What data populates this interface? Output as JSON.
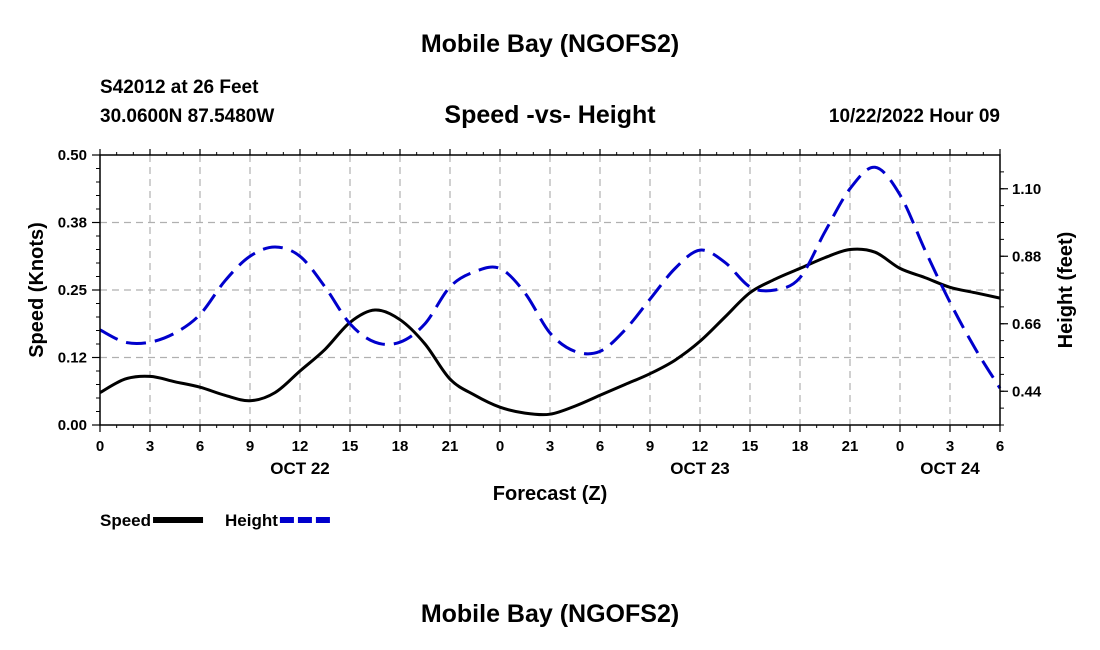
{
  "header": {
    "title": "Mobile Bay (NGOFS2)",
    "station": "S42012 at 26 Feet",
    "coords": "30.0600N  87.5480W",
    "subtitle": "Speed -vs- Height",
    "datetime": "10/22/2022 Hour 09"
  },
  "footer": {
    "title": "Mobile Bay (NGOFS2)"
  },
  "colors": {
    "speed": "#000000",
    "height": "#0000cc",
    "grid": "#b0b0b0"
  },
  "chart_data": {
    "type": "line",
    "xlabel": "Forecast (Z)",
    "ylabel_left": "Speed (Knots)",
    "ylabel_right": "Height (feet)",
    "x_unit": "hours from 10/22/2022 00Z",
    "xlim": [
      0,
      54
    ],
    "ylim_left": [
      0,
      0.5
    ],
    "ylim_right": [
      0.33,
      1.21
    ],
    "x_ticks": [
      0,
      3,
      6,
      9,
      12,
      15,
      18,
      21,
      24,
      27,
      30,
      33,
      36,
      39,
      42,
      45,
      48,
      51,
      54
    ],
    "x_tick_labels": [
      "0",
      "3",
      "6",
      "9",
      "12",
      "15",
      "18",
      "21",
      "0",
      "3",
      "6",
      "9",
      "12",
      "15",
      "18",
      "21",
      "0",
      "3",
      "6"
    ],
    "day_labels": [
      {
        "x": 12,
        "label": "OCT 22"
      },
      {
        "x": 36,
        "label": "OCT 23"
      },
      {
        "x": 51,
        "label": "OCT 24"
      }
    ],
    "left_ticks": [
      0.0,
      0.125,
      0.25,
      0.375,
      0.5
    ],
    "left_tick_labels": [
      "0.00",
      "0.12",
      "0.25",
      "0.38",
      "0.50"
    ],
    "right_ticks": [
      0.44,
      0.66,
      0.88,
      1.1
    ],
    "right_tick_labels": [
      "0.44",
      "0.66",
      "0.88",
      "1.10"
    ],
    "grid": true,
    "legend_position": "bottom-left",
    "series": [
      {
        "name": "Speed",
        "axis": "left",
        "style": "solid",
        "x": [
          0,
          1.5,
          3,
          4.5,
          6,
          7.5,
          9,
          10.5,
          12,
          13.5,
          15,
          16.5,
          18,
          19.5,
          21,
          22.5,
          24,
          25.5,
          27,
          28.5,
          30,
          31.5,
          33,
          34.5,
          36,
          37.5,
          39,
          40.5,
          42,
          43.5,
          45,
          46.5,
          48,
          49.5,
          51,
          52.5,
          54
        ],
        "values": [
          0.06,
          0.085,
          0.09,
          0.08,
          0.07,
          0.055,
          0.045,
          0.06,
          0.1,
          0.14,
          0.19,
          0.213,
          0.195,
          0.15,
          0.085,
          0.055,
          0.033,
          0.022,
          0.02,
          0.035,
          0.055,
          0.075,
          0.095,
          0.12,
          0.155,
          0.2,
          0.245,
          0.27,
          0.29,
          0.31,
          0.325,
          0.32,
          0.29,
          0.273,
          0.255,
          0.245,
          0.235
        ]
      },
      {
        "name": "Height",
        "axis": "right",
        "style": "dashed",
        "x": [
          0,
          1.5,
          3,
          4.5,
          6,
          7.5,
          9,
          10.5,
          12,
          13.5,
          15,
          16.5,
          18,
          19.5,
          21,
          22.5,
          24,
          25.5,
          27,
          28.5,
          30,
          31.5,
          33,
          34.5,
          36,
          37.5,
          39,
          40.5,
          42,
          43.5,
          45,
          46.5,
          48,
          49.5,
          51,
          52.5,
          54
        ],
        "values": [
          0.64,
          0.6,
          0.6,
          0.63,
          0.69,
          0.8,
          0.88,
          0.91,
          0.88,
          0.78,
          0.66,
          0.6,
          0.6,
          0.66,
          0.78,
          0.83,
          0.84,
          0.76,
          0.63,
          0.57,
          0.57,
          0.64,
          0.74,
          0.84,
          0.9,
          0.86,
          0.78,
          0.77,
          0.81,
          0.96,
          1.1,
          1.17,
          1.08,
          0.9,
          0.73,
          0.58,
          0.45
        ]
      }
    ]
  }
}
